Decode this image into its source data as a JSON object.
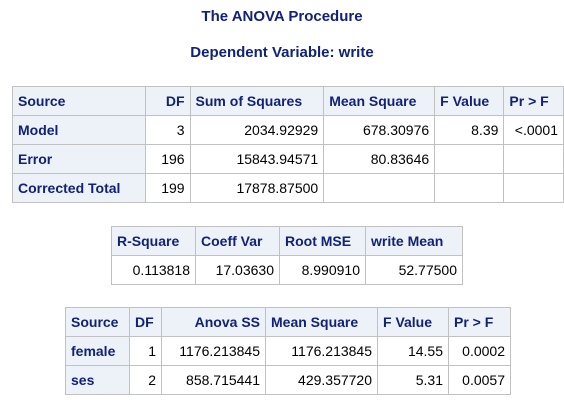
{
  "procedure_title": "The ANOVA Procedure",
  "dependent_variable": "Dependent Variable: write",
  "anova_table": {
    "headers": [
      "Source",
      "DF",
      "Sum of Squares",
      "Mean Square",
      "F Value",
      "Pr > F"
    ],
    "rows": [
      {
        "source": "Model",
        "df": "3",
        "ss": "2034.92929",
        "ms": "678.30976",
        "f": "8.39",
        "p": "<.0001"
      },
      {
        "source": "Error",
        "df": "196",
        "ss": "15843.94571",
        "ms": "80.83646",
        "f": "",
        "p": ""
      },
      {
        "source": "Corrected Total",
        "df": "199",
        "ss": "17878.87500",
        "ms": "",
        "f": "",
        "p": ""
      }
    ]
  },
  "fit_table": {
    "headers": [
      "R-Square",
      "Coeff Var",
      "Root MSE",
      "write Mean"
    ],
    "values": [
      "0.113818",
      "17.03630",
      "8.990910",
      "52.77500"
    ]
  },
  "ss_table": {
    "headers": [
      "Source",
      "DF",
      "Anova SS",
      "Mean Square",
      "F Value",
      "Pr > F"
    ],
    "rows": [
      {
        "source": "female",
        "df": "1",
        "ss": "1176.213845",
        "ms": "1176.213845",
        "f": "14.55",
        "p": "0.0002"
      },
      {
        "source": "ses",
        "df": "2",
        "ss": "858.715441",
        "ms": "429.357720",
        "f": "5.31",
        "p": "0.0057"
      }
    ]
  }
}
